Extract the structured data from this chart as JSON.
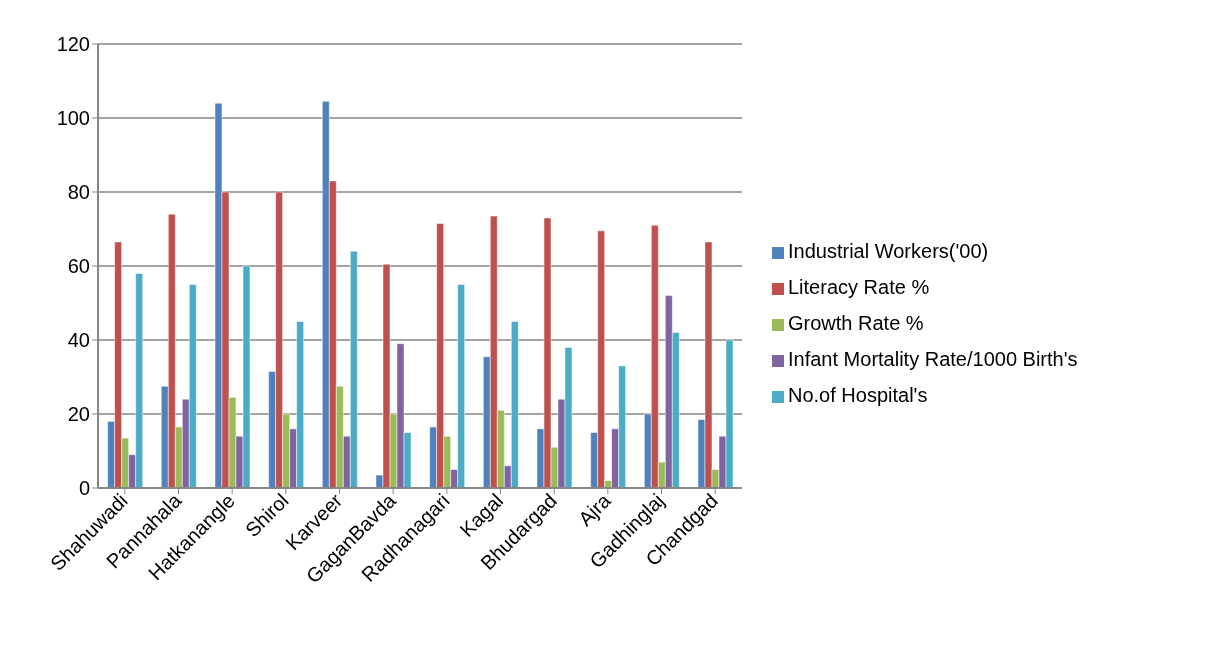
{
  "chart_data": {
    "type": "bar",
    "categories": [
      "Shahuwadi",
      "Pannahala",
      "Hatkanangle",
      "Shirol",
      "Karveer",
      "GaganBavda",
      "Radhanagari",
      "Kagal",
      "Bhudargad",
      "Ajra",
      "Gadhinglaj",
      "Chandgad"
    ],
    "series": [
      {
        "name": "Industrial Workers('00)",
        "color": "#4f81bd",
        "values": [
          18,
          27.5,
          104,
          31.5,
          104.5,
          3.5,
          16.5,
          35.5,
          16,
          15,
          20,
          18.5
        ]
      },
      {
        "name": "Literacy Rate %",
        "color": "#c0504d",
        "values": [
          66.5,
          74,
          80,
          80,
          83,
          60.5,
          71.5,
          73.5,
          73,
          69.5,
          71,
          66.5
        ]
      },
      {
        "name": "Growth Rate %",
        "color": "#9bbb59",
        "values": [
          13.5,
          16.5,
          24.5,
          20,
          27.5,
          20,
          14,
          21,
          11,
          2,
          7,
          5
        ]
      },
      {
        "name": "Infant Mortality Rate/1000 Birth's",
        "color": "#8064a2",
        "values": [
          9,
          24,
          14,
          16,
          14,
          39,
          5,
          6,
          24,
          16,
          52,
          14
        ]
      },
      {
        "name": "No.of Hospital's",
        "color": "#4bacc6",
        "values": [
          58,
          55,
          60,
          45,
          64,
          15,
          55,
          45,
          38,
          33,
          42,
          40
        ]
      }
    ],
    "ylim": [
      0,
      120
    ],
    "yticks": [
      0,
      20,
      40,
      60,
      80,
      100,
      120
    ],
    "grid": "y",
    "legend": "right"
  }
}
